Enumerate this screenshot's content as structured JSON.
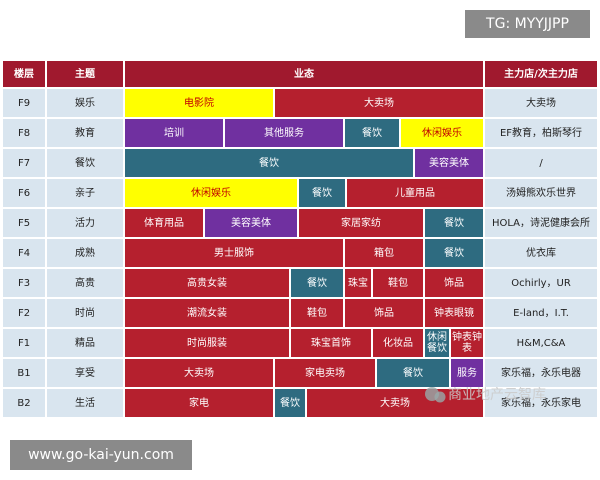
{
  "header": {
    "floor": "楼层",
    "theme": "主题",
    "business": "业态",
    "main_store": "主力店/次主力店"
  },
  "rows": [
    {
      "floor": "F9",
      "theme": "娱乐",
      "segments": [
        {
          "label": "电影院",
          "color": "#ffff00"
        },
        {
          "label": "大卖场",
          "color": "#b5202e"
        }
      ],
      "main": "大卖场"
    },
    {
      "floor": "F8",
      "theme": "教育",
      "segments": [
        {
          "label": "培训",
          "color": "#7030a0"
        },
        {
          "label": "其他服务",
          "color": "#7030a0"
        },
        {
          "label": "餐饮",
          "color": "#2e6b80"
        },
        {
          "label": "休闲娱乐",
          "color": "#ffff00"
        }
      ],
      "main": "EF教育，柏斯琴行"
    },
    {
      "floor": "F7",
      "theme": "餐饮",
      "segments": [
        {
          "label": "餐饮",
          "color": "#2e6b80"
        },
        {
          "label": "美容美体",
          "color": "#7030a0"
        }
      ],
      "main": "/"
    },
    {
      "floor": "F6",
      "theme": "亲子",
      "segments": [
        {
          "label": "休闲娱乐",
          "color": "#ffff00"
        },
        {
          "label": "餐饮",
          "color": "#2e6b80"
        },
        {
          "label": "儿童用品",
          "color": "#b5202e"
        }
      ],
      "main": "汤姆熊欢乐世界"
    },
    {
      "floor": "F5",
      "theme": "活力",
      "segments": [
        {
          "label": "体育用品",
          "color": "#b5202e"
        },
        {
          "label": "美容美体",
          "color": "#7030a0"
        },
        {
          "label": "家居家纺",
          "color": "#b5202e"
        },
        {
          "label": "餐饮",
          "color": "#2e6b80"
        }
      ],
      "main": "HOLA，诗泥健康会所"
    },
    {
      "floor": "F4",
      "theme": "成熟",
      "segments": [
        {
          "label": "男士服饰",
          "color": "#b5202e"
        },
        {
          "label": "箱包",
          "color": "#b5202e"
        },
        {
          "label": "餐饮",
          "color": "#2e6b80"
        }
      ],
      "main": "优衣库"
    },
    {
      "floor": "F3",
      "theme": "高贵",
      "segments": [
        {
          "label": "高贵女装",
          "color": "#b5202e"
        },
        {
          "label": "餐饮",
          "color": "#2e6b80"
        },
        {
          "label": "珠宝",
          "color": "#b5202e"
        },
        {
          "label": "鞋包",
          "color": "#b5202e"
        },
        {
          "label": "饰品",
          "color": "#b5202e"
        }
      ],
      "main": "Ochirly，UR"
    },
    {
      "floor": "F2",
      "theme": "时尚",
      "segments": [
        {
          "label": "潮流女装",
          "color": "#b5202e"
        },
        {
          "label": "鞋包",
          "color": "#b5202e"
        },
        {
          "label": "饰品",
          "color": "#b5202e"
        },
        {
          "label": "钟表眼镜",
          "color": "#b5202e"
        }
      ],
      "main": "E-land，I.T."
    },
    {
      "floor": "F1",
      "theme": "精品",
      "segments": [
        {
          "label": "时尚服装",
          "color": "#b5202e"
        },
        {
          "label": "珠宝首饰",
          "color": "#b5202e"
        },
        {
          "label": "化妆品",
          "color": "#b5202e"
        },
        {
          "label": "休闲餐饮",
          "color": "#2e6b80"
        },
        {
          "label": "钟表钟表",
          "color": "#b5202e"
        }
      ],
      "main": "H&M,C&A"
    },
    {
      "floor": "B1",
      "theme": "享受",
      "segments": [
        {
          "label": "大卖场",
          "color": "#b5202e"
        },
        {
          "label": "家电卖场",
          "color": "#b5202e"
        },
        {
          "label": "餐饮",
          "color": "#2e6b80"
        },
        {
          "label": "服务",
          "color": "#7030a0"
        }
      ],
      "main": "家乐福，永乐电器"
    },
    {
      "floor": "B2",
      "theme": "生活",
      "segments": [
        {
          "label": "家电",
          "color": "#b5202e"
        },
        {
          "label": "餐饮",
          "color": "#2e6b80"
        },
        {
          "label": "大卖场",
          "color": "#b5202e"
        }
      ],
      "main": "家乐福，永乐家电"
    }
  ],
  "overlays": {
    "tg": "TG: MYYJJPP",
    "site": "www.go-kai-yun.com",
    "watermark": "商业地产云智库"
  }
}
